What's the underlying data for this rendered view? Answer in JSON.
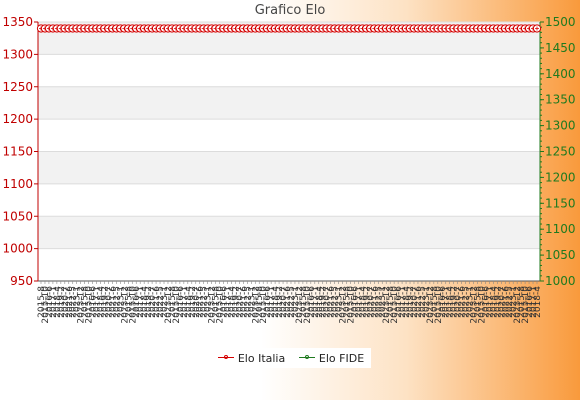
{
  "chart_data": {
    "type": "line",
    "title": "Grafico Elo",
    "y_left": {
      "ylim": [
        950,
        1350
      ],
      "ticks": [
        950,
        1000,
        1050,
        1100,
        1150,
        1200,
        1250,
        1300,
        1350
      ]
    },
    "y_right": {
      "ylim": [
        1000,
        1500
      ],
      "ticks": [
        1000,
        1050,
        1100,
        1150,
        1200,
        1250,
        1300,
        1350,
        1400,
        1450,
        1500
      ]
    },
    "x": {
      "count": 126,
      "tick_labels_note": "dense overlapping date labels, mostly illegible",
      "tick_labels": [
        "2015-8",
        "2015-10",
        "2016-6",
        "2017-1",
        "2018-4",
        "2019-2",
        "2020-7",
        "2021-6",
        "2022-5",
        "2023-1",
        "2023-12"
      ]
    },
    "grid": "horizontal",
    "legend": "bottom-center",
    "series": [
      {
        "name": "Elo Italia",
        "color": "#d40000",
        "axis": "left",
        "segments": [
          {
            "start_index": 0,
            "values": [
              1340,
              1340,
              1340,
              1340,
              1340,
              1340,
              1340,
              1340,
              1340,
              1340,
              1340,
              1340,
              1340,
              1340,
              1340,
              1340,
              1340,
              1340,
              1340,
              1340,
              1340,
              1340,
              1340,
              1340,
              1340,
              1340,
              1340,
              1340,
              1340,
              1340,
              1340,
              1340,
              1340,
              1340,
              1340,
              1340,
              1340,
              1340,
              1340,
              1340,
              1340,
              1340,
              1340,
              1340,
              1340,
              1340,
              1340,
              1340,
              1340,
              1340,
              1340,
              1340,
              1340,
              1340,
              1340,
              1340,
              1340,
              1340,
              1340,
              1340,
              1340,
              1340,
              1340,
              1340,
              1340,
              1340,
              1340,
              1340,
              1340,
              1340,
              1340,
              1340,
              1340,
              1340,
              1340,
              1340,
              1340,
              1340,
              1340,
              1340,
              1340,
              1340,
              1340,
              1340,
              1340,
              1340,
              1340,
              1340,
              1340,
              1340,
              1340,
              1340,
              1340,
              1340,
              1340,
              1340,
              1340,
              1340,
              1340,
              1340,
              1340,
              1340,
              1340,
              1340,
              1340,
              1340,
              1340,
              1340,
              1340,
              1340,
              1340,
              1340,
              1340,
              1340,
              1340,
              1340,
              1340,
              1340,
              1340,
              1340,
              1340,
              1340,
              1340,
              1340,
              1340,
              1340
            ]
          }
        ]
      },
      {
        "name": "Elo FIDE",
        "color": "#1f7a1f",
        "axis": "right",
        "segments": [
          {
            "start_index": 0,
            "values": []
          }
        ]
      }
    ]
  }
}
